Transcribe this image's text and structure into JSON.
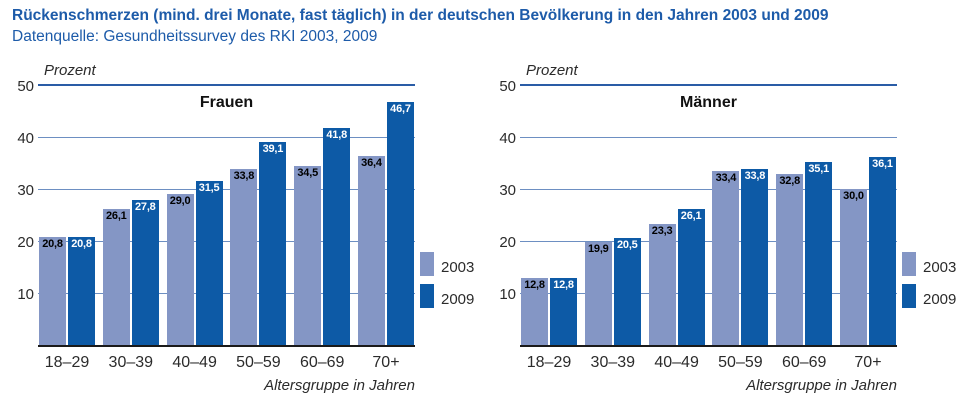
{
  "header": {
    "title": "Rückenschmerzen (mind. drei Monate, fast täglich) in der deutschen Bevölkerung in den Jahren 2003 und 2009",
    "subtitle": "Datenquelle: Gesundheitssurvey des RKI 2003, 2009"
  },
  "colors": {
    "heading_blue": "#1d5ba9",
    "bar_2003": "#8496c5",
    "bar_2009": "#0d5aa6",
    "gridline": "#6d8fc2",
    "gridline_top": "#2a5ca6",
    "axis": "#1a1a1a",
    "label_on_2003": "#000000",
    "label_on_2009": "#ffffff",
    "text_dark": "#2b2b2b"
  },
  "chart_data": [
    {
      "type": "bar",
      "title": "Frauen",
      "ylabel": "Prozent",
      "xlabel": "Altersgruppe in Jahren",
      "ylim": [
        0,
        50
      ],
      "yticks": [
        10,
        20,
        30,
        40,
        50
      ],
      "grid": true,
      "legend_position": "right",
      "decimal_separator": ",",
      "categories": [
        "18–29",
        "30–39",
        "40–49",
        "50–59",
        "60–69",
        "70+"
      ],
      "series": [
        {
          "name": "2003",
          "values": [
            20.8,
            26.1,
            29.0,
            33.8,
            34.5,
            36.4
          ]
        },
        {
          "name": "2009",
          "values": [
            20.8,
            27.8,
            31.5,
            39.1,
            41.8,
            46.7
          ]
        }
      ]
    },
    {
      "type": "bar",
      "title": "Männer",
      "ylabel": "Prozent",
      "xlabel": "Altersgruppe in Jahren",
      "ylim": [
        0,
        50
      ],
      "yticks": [
        10,
        20,
        30,
        40,
        50
      ],
      "grid": true,
      "legend_position": "right",
      "decimal_separator": ",",
      "categories": [
        "18–29",
        "30–39",
        "40–49",
        "50–59",
        "60–69",
        "70+"
      ],
      "series": [
        {
          "name": "2003",
          "values": [
            12.8,
            19.9,
            23.3,
            33.4,
            32.8,
            30.0
          ]
        },
        {
          "name": "2009",
          "values": [
            12.8,
            20.5,
            26.1,
            33.8,
            35.1,
            36.1
          ]
        }
      ]
    }
  ]
}
